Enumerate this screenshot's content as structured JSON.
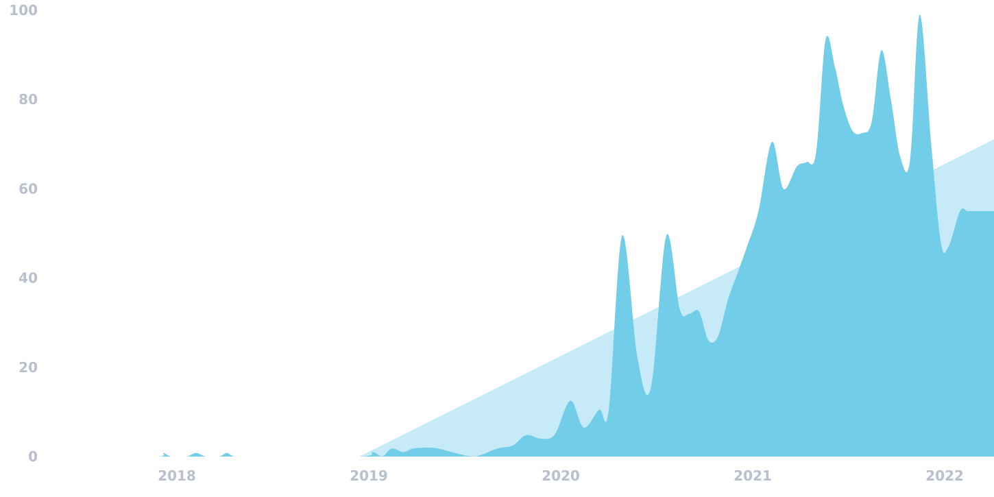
{
  "chart_data": {
    "type": "area",
    "title": "",
    "xlabel": "",
    "ylabel": "",
    "ylim": [
      0,
      100
    ],
    "xlim": [
      2017.57,
      2022.3
    ],
    "x_ticks": [
      2018,
      2019,
      2020,
      2021,
      2022
    ],
    "y_ticks": [
      0,
      20,
      40,
      60,
      80,
      100
    ],
    "grid": false,
    "legend": "none",
    "colors": {
      "trend": "#c6eaf8",
      "series": "#72cde9",
      "tick_text": "#b7c0cc"
    },
    "series": [
      {
        "style": "trend-area",
        "x": [
          2018.95,
          2022.3
        ],
        "values": [
          0,
          72
        ]
      },
      {
        "style": "smooth-area",
        "x": [
          2017.57,
          2017.9,
          2017.93,
          2017.97,
          2018.05,
          2018.1,
          2018.15,
          2018.22,
          2018.26,
          2018.3,
          2018.38,
          2018.95,
          2019.02,
          2019.07,
          2019.12,
          2019.18,
          2019.23,
          2019.3,
          2019.36,
          2019.45,
          2019.55,
          2019.67,
          2019.75,
          2019.82,
          2019.9,
          2019.97,
          2020.05,
          2020.12,
          2020.2,
          2020.25,
          2020.32,
          2020.4,
          2020.47,
          2020.55,
          2020.62,
          2020.67,
          2020.72,
          2020.77,
          2020.82,
          2020.87,
          2020.92,
          2020.97,
          2021.03,
          2021.1,
          2021.16,
          2021.23,
          2021.28,
          2021.33,
          2021.38,
          2021.43,
          2021.47,
          2021.52,
          2021.57,
          2021.62,
          2021.67,
          2021.72,
          2021.77,
          2021.82,
          2021.87,
          2021.93,
          2021.98,
          2022.02,
          2022.08,
          2022.12,
          2022.17,
          2022.22,
          2022.26,
          2022.3
        ],
        "values": [
          0,
          0,
          0.8,
          0,
          0,
          0.8,
          0,
          0,
          0.8,
          0,
          0,
          0,
          1,
          0,
          1.8,
          1,
          1.8,
          2,
          1.8,
          0.8,
          0,
          1.8,
          2.5,
          4.8,
          4,
          5,
          12.5,
          6.5,
          10.5,
          10.5,
          49.5,
          22,
          15.5,
          49.5,
          33,
          32,
          32.5,
          26,
          27,
          35,
          41,
          47,
          55,
          70.5,
          60,
          65,
          66,
          68,
          93.5,
          87,
          79,
          73,
          72.5,
          75,
          91,
          80,
          67,
          66.5,
          99,
          70,
          48,
          47,
          55,
          55,
          55,
          55,
          55,
          55
        ]
      }
    ]
  }
}
